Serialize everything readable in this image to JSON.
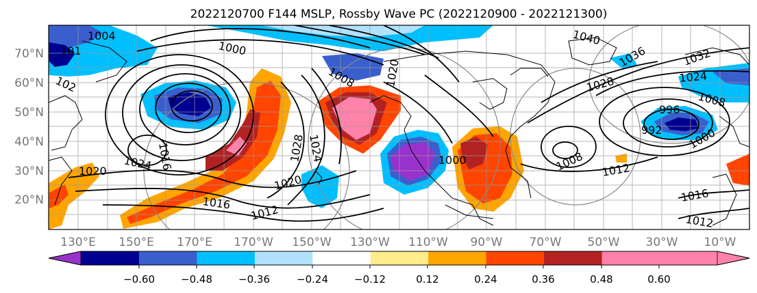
{
  "title": "2022120700 F144 MSLP, Rossby Wave PC (2022120900 - 2022121300)",
  "map": {
    "lat_labels": [
      "70°N",
      "60°N",
      "50°N",
      "40°N",
      "30°N",
      "20°N"
    ],
    "lon_labels": [
      "130°E",
      "150°E",
      "170°E",
      "170°W",
      "150°W",
      "130°W",
      "110°W",
      "90°W",
      "70°W",
      "50°W",
      "30°W",
      "10°W"
    ],
    "isobar_labels": [
      {
        "text": "1004"
      },
      {
        "text": "1000"
      },
      {
        "text": "1040"
      },
      {
        "text": "1036"
      },
      {
        "text": "1032"
      },
      {
        "text": "1024"
      },
      {
        "text": "1028"
      },
      {
        "text": "1008"
      },
      {
        "text": "996"
      },
      {
        "text": "1012"
      },
      {
        "text": "1016"
      },
      {
        "text": "1020"
      },
      {
        "text": "1024"
      },
      {
        "text": "1020"
      },
      {
        "text": "1016"
      },
      {
        "text": "1012"
      },
      {
        "text": "1008"
      },
      {
        "text": "1028"
      },
      {
        "text": "1024"
      },
      {
        "text": "1000"
      },
      {
        "text": "1000"
      },
      {
        "text": "1016"
      },
      {
        "text": "1012"
      },
      {
        "text": "992"
      },
      {
        "text": "1008"
      },
      {
        "text": "1020"
      },
      {
        "text": "101"
      },
      {
        "text": "102"
      }
    ]
  },
  "colorbar": {
    "ticks": [
      "−0.60",
      "−0.48",
      "−0.36",
      "−0.24",
      "−0.12",
      "0.12",
      "0.24",
      "0.36",
      "0.48",
      "0.60"
    ],
    "colors": [
      "#9932cc",
      "#000090",
      "#3a5fcd",
      "#00bfff",
      "#b0e2ff",
      "#ffffff",
      "#ffec8b",
      "#ffa500",
      "#ff4500",
      "#b22222",
      "#ff82ab",
      "#ff82ab"
    ]
  },
  "palette": {
    "neg_060": "#9932cc",
    "neg_048": "#000090",
    "neg_036": "#3a5fcd",
    "neg_024": "#00bfff",
    "neg_012": "#b0e2ff",
    "pos_012": "#ffec8b",
    "pos_024": "#ffa500",
    "pos_036": "#ff4500",
    "pos_048": "#b22222",
    "pos_060": "#ff82ab"
  }
}
